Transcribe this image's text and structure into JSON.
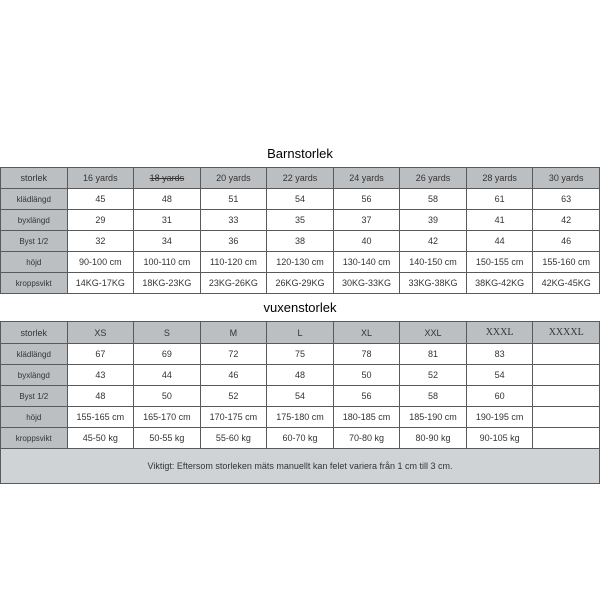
{
  "children_title": "Barnstorlek",
  "adult_title": "vuxenstorlek",
  "children": {
    "headers": [
      "storlek",
      "16 yards",
      "18 yards",
      "20 yards",
      "22 yards",
      "24 yards",
      "26 yards",
      "28 yards",
      "30 yards"
    ],
    "header_strike": [
      false,
      false,
      true,
      false,
      false,
      false,
      false,
      false,
      false
    ],
    "header_serif": [
      false,
      false,
      false,
      false,
      false,
      false,
      false,
      false,
      false
    ],
    "rows": [
      {
        "label": "klädlängd",
        "cells": [
          "45",
          "48",
          "51",
          "54",
          "56",
          "58",
          "61",
          "63"
        ]
      },
      {
        "label": "byxlängd",
        "cells": [
          "29",
          "31",
          "33",
          "35",
          "37",
          "39",
          "41",
          "42"
        ]
      },
      {
        "label": "Byst 1/2",
        "cells": [
          "32",
          "34",
          "36",
          "38",
          "40",
          "42",
          "44",
          "46"
        ]
      },
      {
        "label": "höjd",
        "cells": [
          "90-100 cm",
          "100-110 cm",
          "110-120 cm",
          "120-130 cm",
          "130-140 cm",
          "140-150 cm",
          "150-155 cm",
          "155-160 cm"
        ]
      },
      {
        "label": "kroppsvikt",
        "cells": [
          "14KG-17KG",
          "18KG-23KG",
          "23KG-26KG",
          "26KG-29KG",
          "30KG-33KG",
          "33KG-38KG",
          "38KG-42KG",
          "42KG-45KG"
        ]
      }
    ]
  },
  "adult": {
    "headers": [
      "storlek",
      "XS",
      "S",
      "M",
      "L",
      "XL",
      "XXL",
      "XXXL",
      "XXXXL"
    ],
    "header_strike": [
      false,
      false,
      false,
      false,
      false,
      false,
      false,
      false,
      false
    ],
    "header_serif": [
      false,
      false,
      false,
      false,
      false,
      false,
      false,
      true,
      true
    ],
    "rows": [
      {
        "label": "klädlängd",
        "cells": [
          "67",
          "69",
          "72",
          "75",
          "78",
          "81",
          "83",
          ""
        ]
      },
      {
        "label": "byxlängd",
        "cells": [
          "43",
          "44",
          "46",
          "48",
          "50",
          "52",
          "54",
          ""
        ]
      },
      {
        "label": "Byst 1/2",
        "cells": [
          "48",
          "50",
          "52",
          "54",
          "56",
          "58",
          "60",
          ""
        ]
      },
      {
        "label": "höjd",
        "cells": [
          "155-165 cm",
          "165-170 cm",
          "170-175 cm",
          "175-180 cm",
          "180-185 cm",
          "185-190 cm",
          "190-195 cm",
          ""
        ]
      },
      {
        "label": "kroppsvikt",
        "cells": [
          "45-50 kg",
          "50-55 kg",
          "55-60 kg",
          "60-70 kg",
          "70-80 kg",
          "80-90 kg",
          "90-105 kg",
          ""
        ]
      }
    ]
  },
  "note": "Viktigt: Eftersom storleken mäts manuellt kan felet variera från 1 cm till 3 cm."
}
